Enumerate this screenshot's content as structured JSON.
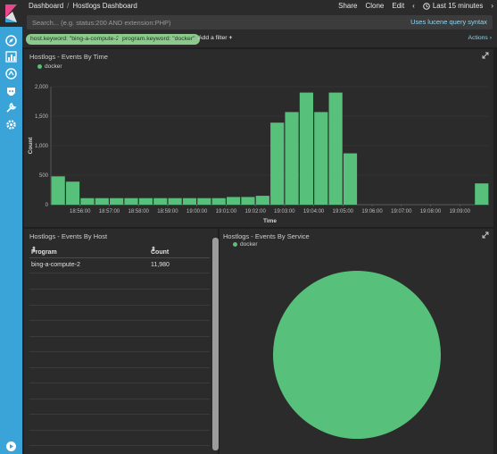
{
  "header": {
    "breadcrumb_root": "Dashboard",
    "breadcrumb_sep": "/",
    "breadcrumb_current": "Hostlogs Dashboard",
    "share_label": "Share",
    "clone_label": "Clone",
    "edit_label": "Edit",
    "time_range_label": "Last 15 minutes"
  },
  "search": {
    "placeholder": "Search... (e.g. status:200 AND extension:PHP)",
    "syntax_link": "Uses lucene query syntax"
  },
  "filters": {
    "pills": [
      "host.keyword: \"bing-a-compute-2\"",
      "program.keyword: \"docker\""
    ],
    "add_filter_label": "Add a filter",
    "actions_label": "Actions"
  },
  "colors": {
    "accent": "#3aa4d8",
    "series": "#57c17b",
    "filter_pill": "#8dc98d",
    "link": "#8dd6f2"
  },
  "panels": {
    "events_by_time": {
      "title": "Hostlogs - Events By Time",
      "legend": "docker"
    },
    "events_by_host": {
      "title": "Hostlogs - Events By Host",
      "columns": [
        "Program",
        "Count"
      ],
      "rows": [
        [
          "bing-a-compute-2",
          "11,980"
        ]
      ]
    },
    "events_by_service": {
      "title": "Hostlogs - Events By Service",
      "legend": "docker"
    }
  },
  "chart_data": [
    {
      "type": "bar",
      "title": "Hostlogs - Events By Time",
      "xlabel": "Time",
      "ylabel": "Count",
      "ylim": [
        0,
        2000
      ],
      "yticks": [
        "0",
        "500",
        "1,000",
        "1,500",
        "2,000"
      ],
      "xticks": [
        "18:56:00",
        "18:57:00",
        "18:58:00",
        "18:59:00",
        "19:00:00",
        "19:01:00",
        "19:02:00",
        "19:03:00",
        "19:04:00",
        "19:05:00",
        "19:06:00",
        "19:07:00",
        "19:08:00",
        "19:09:00"
      ],
      "series": [
        {
          "name": "docker",
          "values": [
            480,
            390,
            110,
            110,
            110,
            110,
            110,
            110,
            110,
            110,
            110,
            110,
            130,
            130,
            150,
            1390,
            1570,
            1900,
            1570,
            1900,
            870,
            0,
            0,
            0,
            0,
            0,
            0,
            0,
            0,
            360
          ]
        }
      ],
      "grid": true,
      "legend": "top-left"
    },
    {
      "type": "pie",
      "title": "Hostlogs - Events By Service",
      "categories": [
        "docker"
      ],
      "values": [
        11980
      ],
      "legend": "top-left"
    }
  ]
}
